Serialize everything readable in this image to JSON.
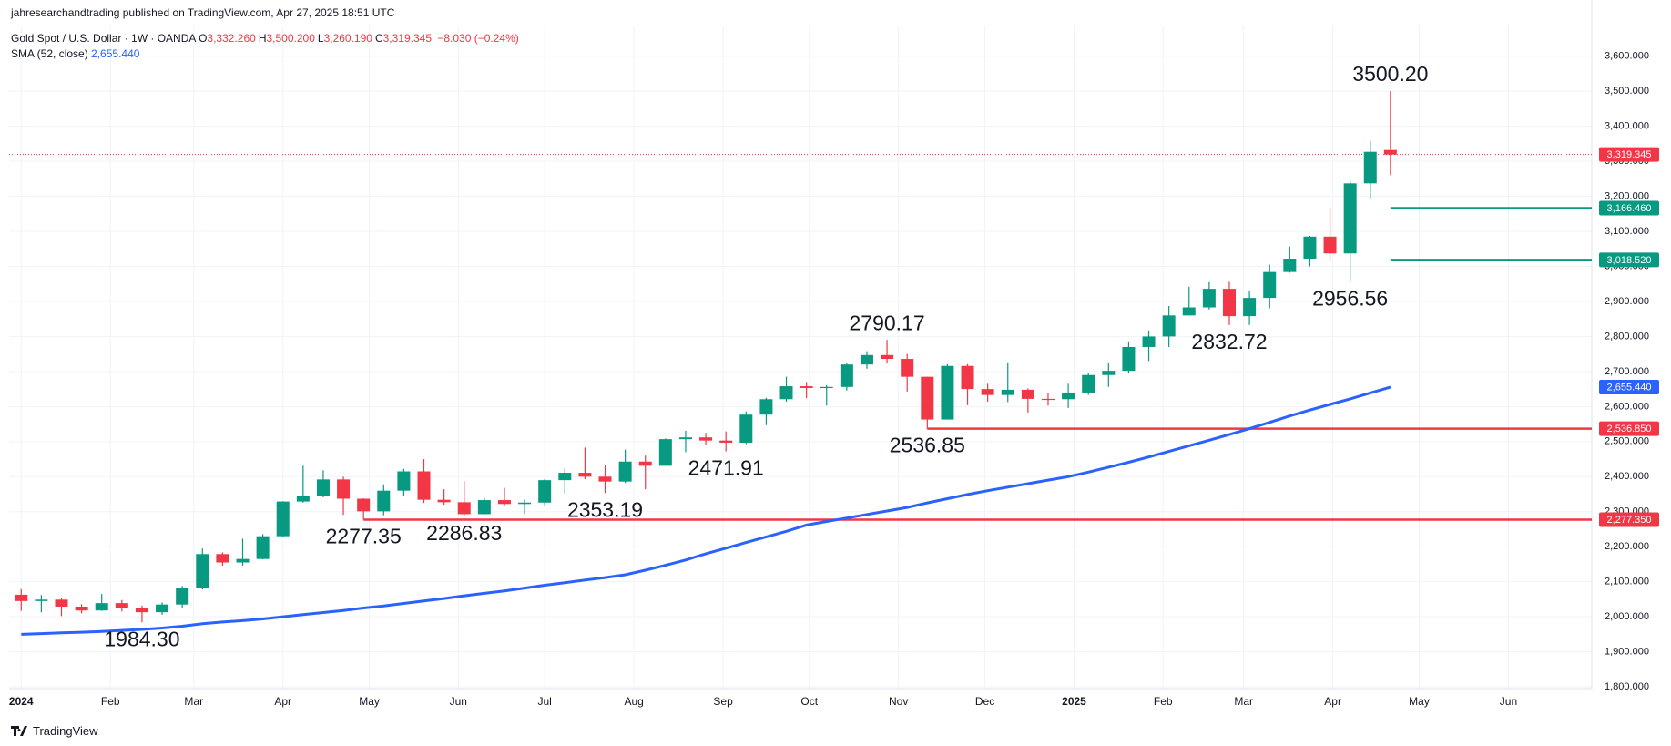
{
  "published": "jahresearchandtrading published on TradingView.com, Apr 27, 2025 18:51 UTC",
  "brand": "TradingView",
  "header": {
    "symbol": "Gold Spot / U.S. Dollar · 1W · OANDA",
    "ohlc": [
      {
        "label": "O",
        "value": "3,332.260"
      },
      {
        "label": "H",
        "value": "3,500.200"
      },
      {
        "label": "L",
        "value": "3,260.190"
      },
      {
        "label": "C",
        "value": "3,319.345"
      }
    ],
    "change": "−8.030 (−0.24%)",
    "indicator": "SMA (52, close)"
  },
  "chart_data": {
    "type": "candlestick",
    "up_color": "#089981",
    "down_color": "#f23645",
    "open": [
      2063,
      2045,
      2049,
      2029,
      2018,
      2039,
      2024,
      2013,
      2035,
      2083,
      2179,
      2155,
      2165,
      2230,
      2329,
      2344,
      2392,
      2337,
      2301,
      2360,
      2415,
      2334,
      2327,
      2293,
      2333,
      2322,
      2326,
      2390,
      2411,
      2400,
      2386,
      2443,
      2431,
      2507,
      2512,
      2503,
      2497,
      2577,
      2621,
      2658,
      2653,
      2656,
      2720,
      2747,
      2736,
      2685,
      2563,
      2716,
      2650,
      2633,
      2648,
      2622,
      2621,
      2640,
      2690,
      2702,
      2770,
      2800,
      2860,
      2883,
      2936,
      2858,
      2910,
      2984,
      3022,
      3085,
      3037,
      3237,
      3332.26
    ],
    "high": [
      2079,
      2062,
      2055,
      2036,
      2065,
      2048,
      2032,
      2041,
      2088,
      2195,
      2184,
      2223,
      2236,
      2330,
      2431,
      2418,
      2400,
      2338,
      2378,
      2422,
      2450,
      2364,
      2387,
      2339,
      2368,
      2335,
      2393,
      2424,
      2483,
      2432,
      2477,
      2460,
      2509,
      2531,
      2525,
      2529,
      2586,
      2625,
      2685,
      2670,
      2661,
      2724,
      2758,
      2790.17,
      2750,
      2685,
      2721,
      2721,
      2665,
      2726,
      2652,
      2640,
      2665,
      2697,
      2725,
      2786,
      2817,
      2887,
      2942,
      2955,
      2956,
      2930,
      3005,
      3057,
      3087,
      3168,
      3245,
      3358,
      3500.2
    ],
    "low": [
      2017,
      2013,
      2002,
      2010,
      2017,
      2015,
      1984.3,
      2006,
      2024,
      2078,
      2146,
      2146,
      2164,
      2229,
      2326,
      2341,
      2291,
      2277.35,
      2290,
      2345,
      2325,
      2320,
      2286.83,
      2292,
      2316,
      2293,
      2318,
      2352,
      2393,
      2353.19,
      2382,
      2364,
      2431,
      2470,
      2490,
      2471.91,
      2493,
      2547,
      2614,
      2624,
      2603,
      2646,
      2708,
      2724,
      2643,
      2536.85,
      2563,
      2604,
      2614,
      2613,
      2583,
      2603,
      2596,
      2633,
      2656,
      2694,
      2730,
      2770,
      2860,
      2877,
      2832.72,
      2833,
      2880,
      2982,
      3000,
      3015,
      2956.56,
      3193,
      3260.19
    ],
    "close": [
      2045,
      2049,
      2029,
      2018,
      2039,
      2024,
      2013,
      2035,
      2083,
      2179,
      2155,
      2165,
      2230,
      2329,
      2344,
      2392,
      2337,
      2301,
      2360,
      2415,
      2334,
      2327,
      2293,
      2333,
      2322,
      2326,
      2390,
      2411,
      2400,
      2386,
      2443,
      2431,
      2507,
      2512,
      2503,
      2497,
      2577,
      2621,
      2658,
      2653,
      2656,
      2720,
      2747,
      2736,
      2685,
      2563,
      2716,
      2650,
      2633,
      2648,
      2622,
      2621,
      2640,
      2690,
      2702,
      2770,
      2800,
      2860,
      2883,
      2936,
      2858,
      2910,
      2984,
      3022,
      3085,
      3037,
      3237,
      3327,
      3319.345
    ],
    "sma": {
      "name": "SMA (52, close)",
      "color": "#2962ff",
      "value_label": "2,655.440",
      "values": [
        1950,
        1952,
        1954,
        1956,
        1958,
        1961,
        1964,
        1968,
        1973,
        1980,
        1985,
        1989,
        1994,
        2000,
        2006,
        2012,
        2018,
        2025,
        2031,
        2038,
        2045,
        2052,
        2060,
        2067,
        2074,
        2082,
        2090,
        2097,
        2105,
        2112,
        2120,
        2133,
        2147,
        2162,
        2180,
        2196,
        2212,
        2228,
        2244,
        2262,
        2272,
        2282,
        2292,
        2302,
        2312,
        2325,
        2337,
        2349,
        2360,
        2370,
        2380,
        2390,
        2400,
        2413,
        2427,
        2441,
        2456,
        2472,
        2488,
        2504,
        2520,
        2537,
        2555,
        2573,
        2590,
        2606,
        2622,
        2639,
        2655.44
      ]
    },
    "price_line": {
      "value": 3319.345,
      "label": "3,319.345",
      "color": "#f23645"
    },
    "levels": [
      {
        "value": 3166.46,
        "label": "3,166.460",
        "color": "#089981"
      },
      {
        "value": 3018.52,
        "label": "3,018.520",
        "color": "#089981"
      },
      {
        "value": 2536.85,
        "label": "2,536.850",
        "color": "#f23645"
      },
      {
        "value": 2277.35,
        "label": "2,277.350",
        "color": "#f23645"
      }
    ],
    "annotations": [
      {
        "text": "3500.20",
        "value": 3500.2
      },
      {
        "text": "2956.56",
        "value": 2956.56
      },
      {
        "text": "2832.72",
        "value": 2832.72
      },
      {
        "text": "2790.17",
        "value": 2790.17
      },
      {
        "text": "2536.85",
        "value": 2536.85
      },
      {
        "text": "2471.91",
        "value": 2471.91
      },
      {
        "text": "2353.19",
        "value": 2353.19
      },
      {
        "text": "2286.83",
        "value": 2286.83
      },
      {
        "text": "2277.35",
        "value": 2277.35
      },
      {
        "text": "1984.30",
        "value": 1984.3
      }
    ],
    "xlim": [
      -0.6,
      78
    ],
    "xticks": [
      {
        "value": 0,
        "label": "2024"
      },
      {
        "value": 4.43,
        "label": "Feb"
      },
      {
        "value": 8.57,
        "label": "Mar"
      },
      {
        "value": 13,
        "label": "Apr"
      },
      {
        "value": 17.29,
        "label": "May"
      },
      {
        "value": 21.71,
        "label": "Jun"
      },
      {
        "value": 26,
        "label": "Jul"
      },
      {
        "value": 30.43,
        "label": "Aug"
      },
      {
        "value": 34.86,
        "label": "Sep"
      },
      {
        "value": 39.14,
        "label": "Oct"
      },
      {
        "value": 43.57,
        "label": "Nov"
      },
      {
        "value": 47.86,
        "label": "Dec"
      },
      {
        "value": 52.29,
        "label": "2025"
      },
      {
        "value": 56.71,
        "label": "Feb"
      },
      {
        "value": 60.71,
        "label": "Mar"
      },
      {
        "value": 65.14,
        "label": "Apr"
      },
      {
        "value": 69.43,
        "label": "May"
      },
      {
        "value": 73.86,
        "label": "Jun"
      }
    ],
    "ylim": [
      1795,
      3685
    ],
    "yticks": [
      {
        "value": 1800,
        "label": "1,800.000"
      },
      {
        "value": 1900,
        "label": "1,900.000"
      },
      {
        "value": 2000,
        "label": "2,000.000"
      },
      {
        "value": 2100,
        "label": "2,100.000"
      },
      {
        "value": 2200,
        "label": "2,200.000"
      },
      {
        "value": 2300,
        "label": "2,300.000"
      },
      {
        "value": 2400,
        "label": "2,400.000"
      },
      {
        "value": 2500,
        "label": "2,500.000"
      },
      {
        "value": 2600,
        "label": "2,600.000"
      },
      {
        "value": 2700,
        "label": "2,700.000"
      },
      {
        "value": 2800,
        "label": "2,800.000"
      },
      {
        "value": 2900,
        "label": "2,900.000"
      },
      {
        "value": 3000,
        "label": "3,000.000"
      },
      {
        "value": 3100,
        "label": "3,100.000"
      },
      {
        "value": 3200,
        "label": "3,200.000"
      },
      {
        "value": 3300,
        "label": "3,300.000"
      },
      {
        "value": 3400,
        "label": "3,400.000"
      },
      {
        "value": 3500,
        "label": "3,500.000"
      },
      {
        "value": 3600,
        "label": "3,600.000"
      }
    ],
    "grid": true
  }
}
